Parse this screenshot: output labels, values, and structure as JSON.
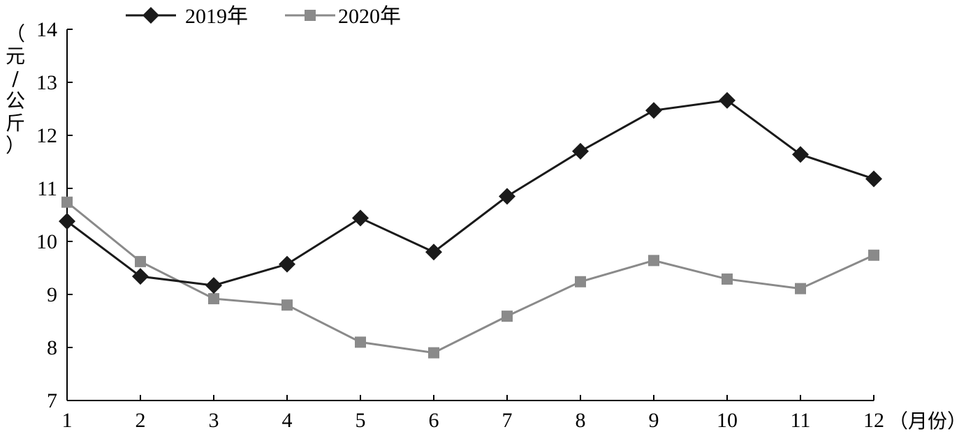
{
  "chart_data": {
    "type": "line",
    "x": [
      1,
      2,
      3,
      4,
      5,
      6,
      7,
      8,
      9,
      10,
      11,
      12
    ],
    "series": [
      {
        "name": "2019年",
        "color": "#1a1a1a",
        "marker": "diamond",
        "values": [
          10.38,
          9.34,
          9.17,
          9.57,
          10.44,
          9.8,
          10.85,
          11.7,
          12.47,
          12.66,
          11.64,
          11.18
        ]
      },
      {
        "name": "2020年",
        "color": "#8a8a8a",
        "marker": "square",
        "values": [
          10.74,
          9.62,
          8.92,
          8.8,
          8.1,
          7.9,
          8.59,
          9.24,
          9.64,
          9.29,
          9.11,
          9.74
        ]
      }
    ],
    "ylabel": "（元/公斤）",
    "xlabel": "（月份）",
    "ylim": [
      7,
      14
    ],
    "yticks": [
      7,
      8,
      9,
      10,
      11,
      12,
      13,
      14
    ],
    "xticks": [
      1,
      2,
      3,
      4,
      5,
      6,
      7,
      8,
      9,
      10,
      11,
      12
    ],
    "grid": false,
    "legend": "top-left"
  }
}
